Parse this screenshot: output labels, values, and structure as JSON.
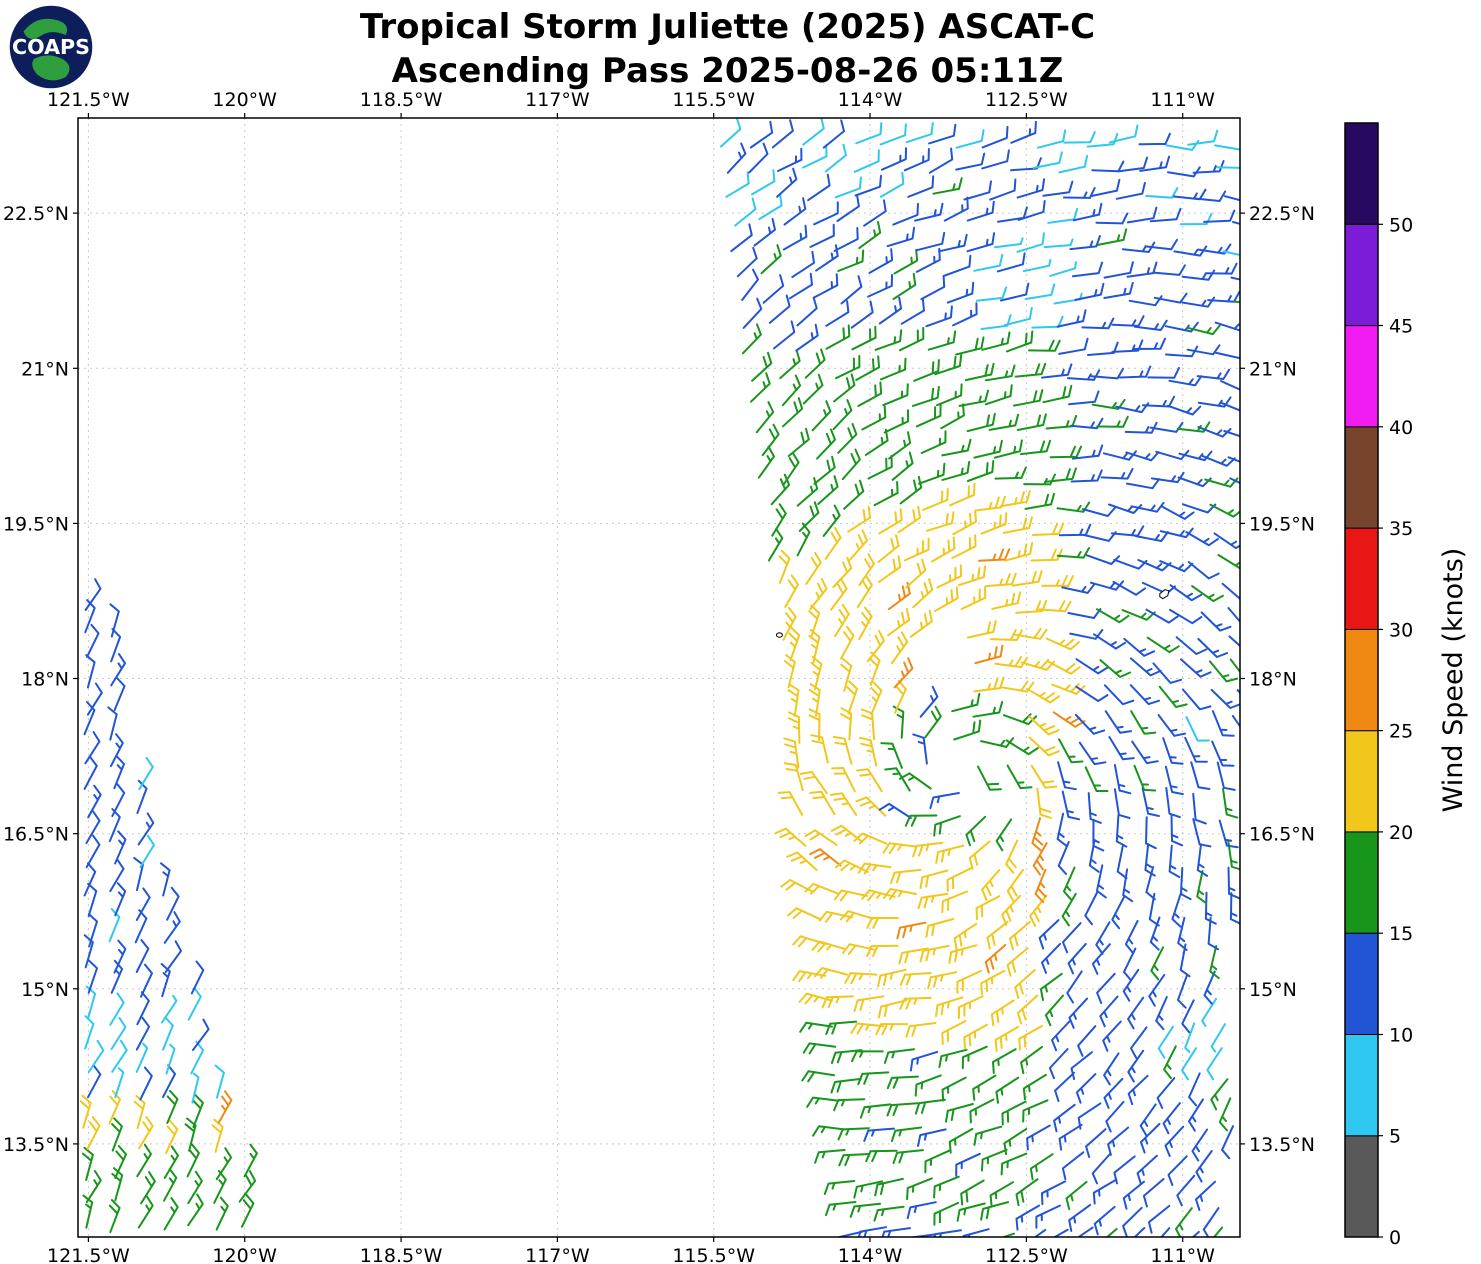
{
  "header": {
    "title_line1": "Tropical Storm Juliette (2025) ASCAT-C",
    "title_line2": "Ascending Pass 2025-08-26 05:11Z",
    "logo_text": "COAPS"
  },
  "chart_data": {
    "type": "wind_barb_map",
    "title": "Tropical Storm Juliette (2025) ASCAT-C",
    "subtitle": "Ascending Pass 2025-08-26 05:11Z",
    "lon_range": [
      -121.6,
      -110.45
    ],
    "lat_range": [
      12.6,
      23.42
    ],
    "x_ticks": {
      "values": [
        -121.5,
        -120,
        -118.5,
        -117,
        -115.5,
        -114,
        -112.5,
        -111
      ],
      "labels": [
        "121.5°W",
        "120°W",
        "118.5°W",
        "117°W",
        "115.5°W",
        "114°W",
        "112.5°W",
        "111°W"
      ]
    },
    "y_ticks": {
      "values": [
        13.5,
        15,
        16.5,
        18,
        19.5,
        21,
        22.5
      ],
      "labels": [
        "13.5°N",
        "15°N",
        "16.5°N",
        "18°N",
        "19.5°N",
        "21°N",
        "22.5°N"
      ]
    },
    "grid": true,
    "colorbar": {
      "label": "Wind Speed (knots)",
      "tick_values": [
        0,
        5,
        10,
        15,
        20,
        25,
        30,
        35,
        40,
        45,
        50
      ],
      "tick_labels": [
        "0",
        "5",
        "10",
        "15",
        "20",
        "25",
        "30",
        "35",
        "40",
        "45",
        "50"
      ],
      "max_value": 55,
      "colors": [
        "#595959",
        "#2FC8F0",
        "#2255D5",
        "#18951B",
        "#F2C71B",
        "#F08914",
        "#E91616",
        "#77452D",
        "#F01BF0",
        "#7C1BD8",
        "#270A60"
      ]
    },
    "storm": {
      "name": "Juliette",
      "center_lon": -113.15,
      "center_lat": 17.1,
      "circulation": "cyclonic"
    },
    "barb_grid_deg": 0.25,
    "model": {
      "right_swath": {
        "edge_lon_at_south": -114.1,
        "edge_slope_deg_per_deg": 0.125,
        "lon_max": -110.49,
        "speed_bands_kt": [
          {
            "r": 0.7,
            "s": 16
          },
          {
            "r": 2.6,
            "s": 23
          },
          {
            "r": 4.3,
            "s": 17
          },
          {
            "r": 5.6,
            "s": 13
          },
          {
            "r": 99,
            "s": 11
          }
        ],
        "east_cap_lon": -112.2,
        "east_cap_speed": 13.5,
        "inflow_deg": 18
      },
      "left_swath": {
        "lon_min": -121.52,
        "lat_max": 18.85,
        "edge_base": -121.32,
        "edge_c1": 0.14,
        "edge_c2": 0.018,
        "wind_from_azimuth_deg": 25,
        "speed_by_lat": [
          {
            "lat": 13.2,
            "s": 17
          },
          {
            "lat": 13.8,
            "s": 21
          },
          {
            "lat": 14.8,
            "s": 9
          },
          {
            "lat": 19.0,
            "s": 12
          }
        ],
        "orange_spot": {
          "lon": -120.3,
          "lat": 13.62,
          "s": 27
        }
      },
      "low_speed_patches": [
        {
          "lon": -112.7,
          "lat": 21.7,
          "r": 0.5,
          "s": 8
        },
        {
          "lon": -112.4,
          "lat": 22.35,
          "r": 0.3,
          "s": 8
        },
        {
          "lon": -110.8,
          "lat": 14.7,
          "r": 0.35,
          "s": 8
        },
        {
          "lon": -110.97,
          "lat": 17.65,
          "r": 0.22,
          "s": 8
        }
      ],
      "gaps": [
        {
          "lon": -113.35,
          "lat": 18.15,
          "r": 0.3
        },
        {
          "lon": -112.75,
          "lat": 16.9,
          "r": 0.22
        }
      ]
    },
    "islands": [
      {
        "lon": -114.87,
        "lat": 18.42
      },
      {
        "lon": -111.22,
        "lat": 18.82
      }
    ]
  }
}
